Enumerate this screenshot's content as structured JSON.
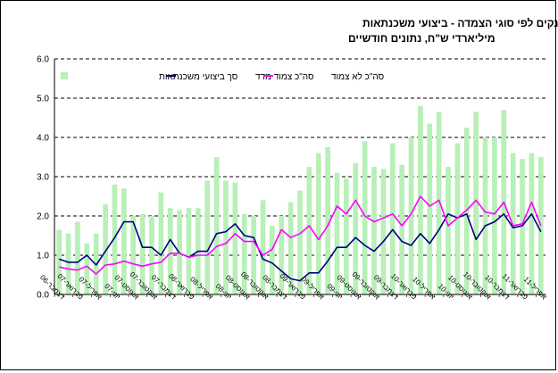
{
  "chart_data": {
    "type": "bar+line",
    "title": "סך אשראי לדיור מבנקים לפי סוגי הצמדה - ביצועי משכנתאות",
    "subtitle": "מיליארדי ש\"ח, נתונים חודשיים",
    "ylim": [
      0,
      6
    ],
    "yticks": [
      "0.0",
      "1.0",
      "2.0",
      "3.0",
      "4.0",
      "5.0",
      "6.0"
    ],
    "grid": "horizontal-dashed",
    "legend_position": "top",
    "colors": {
      "bars": "#b8f0b8",
      "linked_line": "#000080",
      "unlinked_line": "#ff00ff",
      "grid": "#000000"
    },
    "categories": [
      "דצמבר-06",
      "ינואר-07",
      "פברואר-07",
      "מרץ-07",
      "אפריל-07",
      "מאי-07",
      "יוני-07",
      "יולי-07",
      "אוגוסט-07",
      "ספטמבר-07",
      "אוקטובר-07",
      "נובמבר-07",
      "דצמבר-07",
      "ינואר-08",
      "פברואר-08",
      "מרץ-08",
      "אפריל-08",
      "מאי-08",
      "יוני-08",
      "יולי-08",
      "אוגוסט-08",
      "ספטמבר-08",
      "אוקטובר-08",
      "נובמבר-08",
      "דצמבר-08",
      "ינואר-09",
      "פברואר-09",
      "מרץ-09",
      "אפריל-09",
      "מאי-09",
      "יוני-09",
      "יולי-09",
      "אוגוסט-09",
      "ספטמבר-09",
      "אוקטובר-09",
      "נובמבר-09",
      "דצמבר-09",
      "ינואר-10",
      "פברואר-10",
      "מרץ-10",
      "אפריל-10",
      "מאי-10",
      "יוני-10",
      "יולי-10",
      "אוגוסט-10",
      "ספטמבר-10",
      "אוקטובר-10",
      "נובמבר-10",
      "דצמבר-10",
      "ינואר-11",
      "פברואר-11",
      "מרץ-11",
      "אפריל-11"
    ],
    "xlabels": [
      "דצמבר-06",
      "פברואר-07",
      "אפריל-07",
      "יוני-07",
      "אוגוסט-07",
      "אוקטובר-07",
      "דצמבר-07",
      "פברואר-08",
      "אפריל-08",
      "יוני-08",
      "אוגוסט-08",
      "אוקטובר-08",
      "דצמבר-08",
      "פברואר-09",
      "אפריל-09",
      "יוני-09",
      "אוגוסט-09",
      "אוקטובר-09",
      "דצמבר-09",
      "פברואר-10",
      "אפריל-10",
      "יוני-10",
      "אוגוסט-10",
      "אוקטובר-10",
      "דצמבר-10",
      "פברואר-11",
      "אפריל-11"
    ],
    "series": [
      {
        "name": "סך ביצועי משכנתאות",
        "type": "bar",
        "values": [
          1.65,
          1.55,
          1.85,
          1.3,
          1.55,
          2.3,
          2.8,
          2.7,
          2.0,
          2.05,
          2.0,
          2.6,
          2.2,
          2.15,
          2.2,
          2.2,
          2.9,
          3.5,
          2.9,
          2.85,
          2.05,
          2.0,
          2.4,
          1.75,
          2.0,
          2.35,
          2.65,
          3.25,
          3.6,
          3.75,
          3.1,
          2.95,
          3.35,
          3.9,
          3.25,
          3.2,
          3.85,
          3.3,
          4.0,
          4.8,
          4.35,
          4.65,
          3.25,
          3.85,
          4.25,
          4.65,
          4.0,
          4.0,
          4.7,
          3.6,
          3.45,
          3.6,
          3.5
        ]
      },
      {
        "name": "סה\"כ צמוד מדד",
        "type": "line",
        "values": [
          0.9,
          0.82,
          0.82,
          1.0,
          0.75,
          1.1,
          1.45,
          1.85,
          1.85,
          1.2,
          1.2,
          1.0,
          1.4,
          1.05,
          0.95,
          1.1,
          1.1,
          1.55,
          1.6,
          1.8,
          1.5,
          1.45,
          0.9,
          0.8,
          0.6,
          0.4,
          0.35,
          0.55,
          0.55,
          0.85,
          1.2,
          1.2,
          1.45,
          1.25,
          1.1,
          1.35,
          1.65,
          1.35,
          1.25,
          1.55,
          1.3,
          1.65,
          2.05,
          1.95,
          2.05,
          1.4,
          1.75,
          1.85,
          2.05,
          1.7,
          1.75,
          2.05,
          1.6
        ]
      },
      {
        "name": "סה\"כ לא צמוד",
        "type": "line",
        "values": [
          0.7,
          0.65,
          0.62,
          0.72,
          0.52,
          0.75,
          0.78,
          0.85,
          0.78,
          0.72,
          0.78,
          0.82,
          1.05,
          1.05,
          0.95,
          1.0,
          1.0,
          1.22,
          1.3,
          1.55,
          1.35,
          1.35,
          1.0,
          1.15,
          1.65,
          1.45,
          1.55,
          1.75,
          1.4,
          1.75,
          2.25,
          2.05,
          2.4,
          2.0,
          1.85,
          1.95,
          2.05,
          1.75,
          2.05,
          2.5,
          2.25,
          2.4,
          1.75,
          1.95,
          2.15,
          2.4,
          2.1,
          2.05,
          2.35,
          1.75,
          1.8,
          2.35,
          1.75
        ]
      }
    ]
  }
}
